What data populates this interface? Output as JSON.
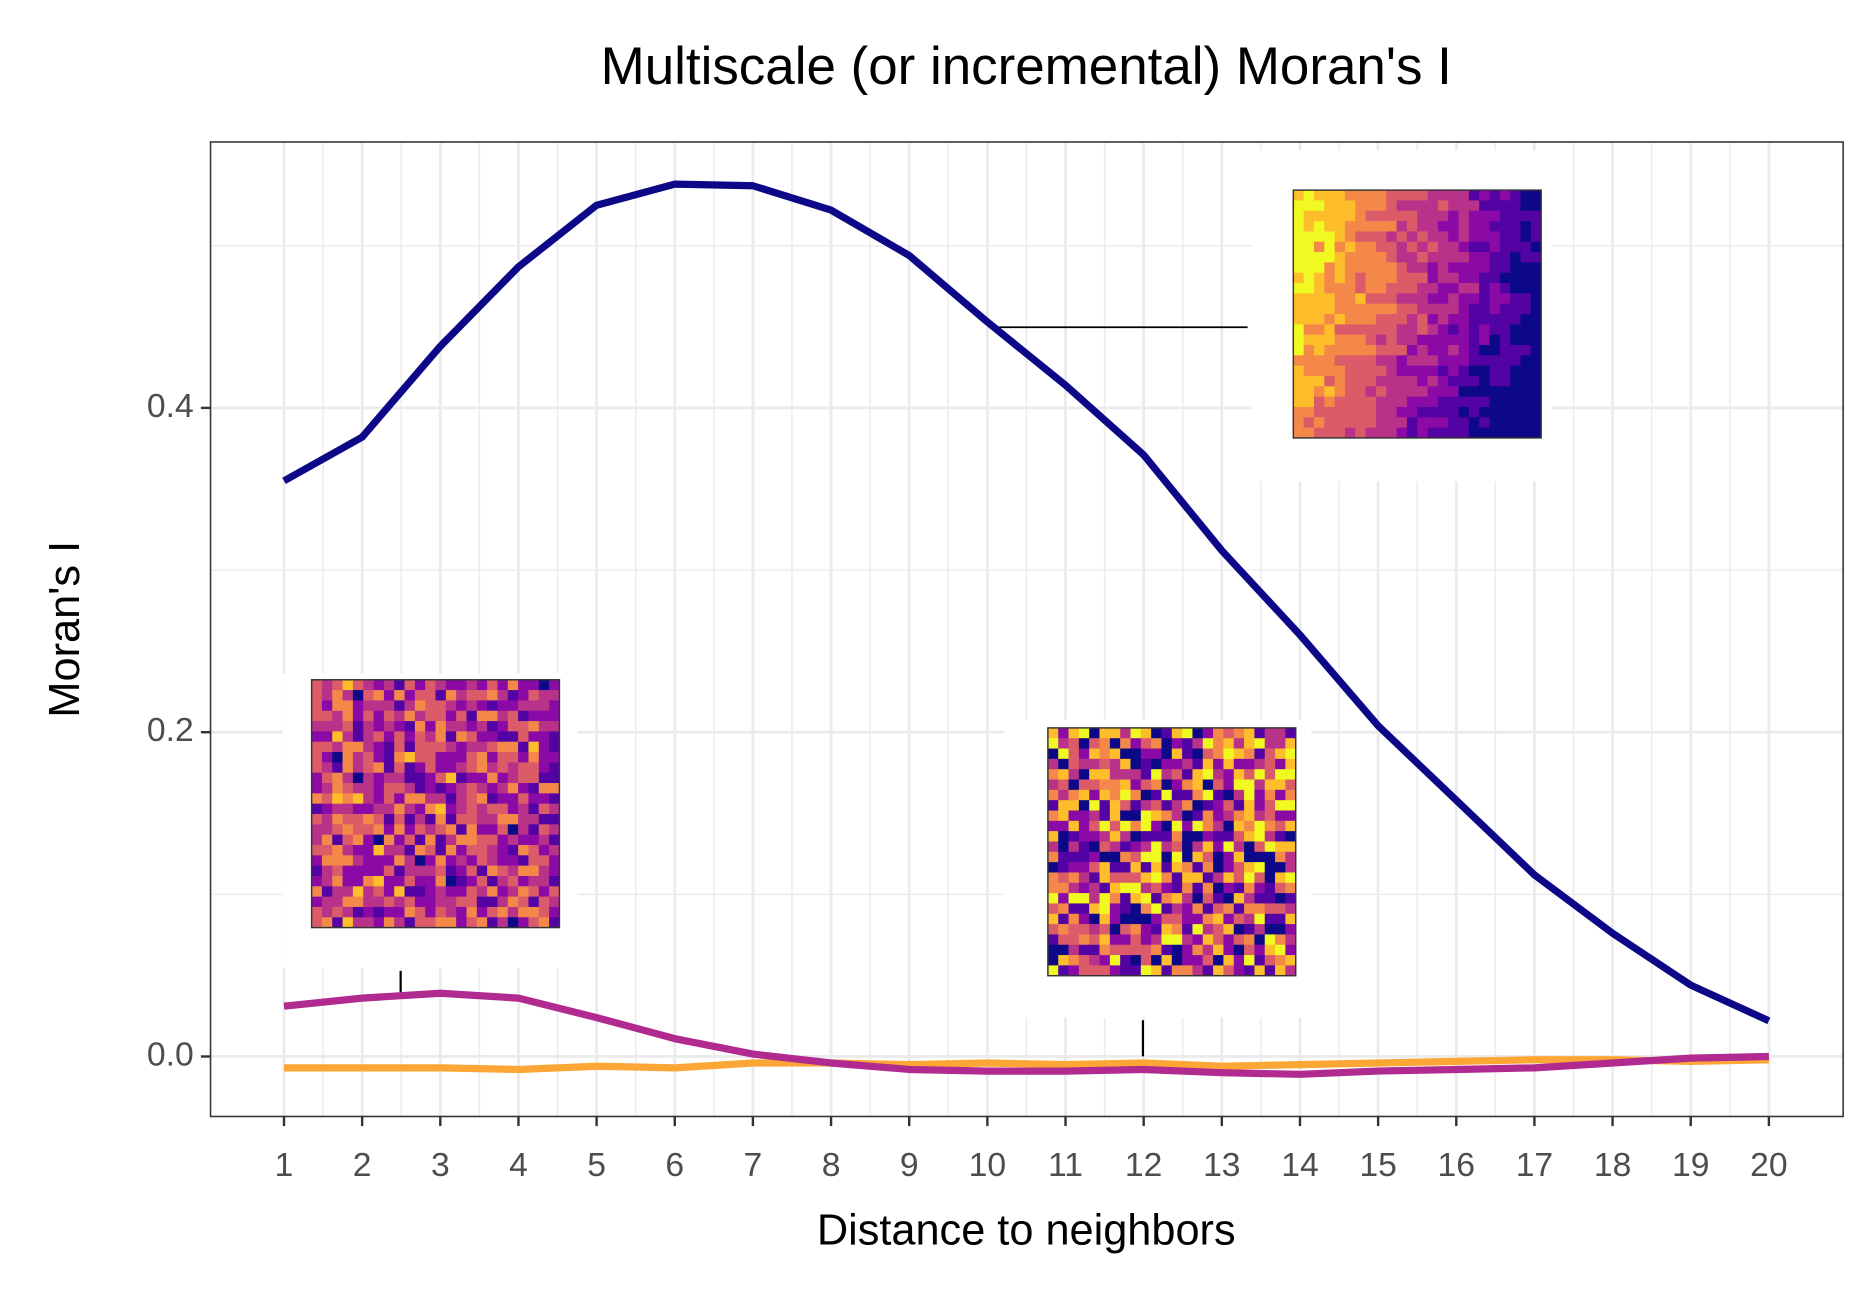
{
  "chart_data": {
    "type": "line",
    "title": "Multiscale (or incremental) Moran's I",
    "x_label": "Distance to neighbors",
    "y_label": "Moran's I",
    "x": [
      1,
      2,
      3,
      4,
      5,
      6,
      7,
      8,
      9,
      10,
      11,
      12,
      13,
      14,
      15,
      16,
      17,
      18,
      19,
      20
    ],
    "series": [
      {
        "color": "#0d0887",
        "values": [
          0.355,
          0.382,
          0.438,
          0.487,
          0.525,
          0.538,
          0.537,
          0.522,
          0.494,
          0.453,
          0.414,
          0.371,
          0.312,
          0.26,
          0.204,
          0.158,
          0.112,
          0.076,
          0.044,
          0.022
        ]
      },
      {
        "color": "#b12a90",
        "values": [
          0.031,
          0.036,
          0.039,
          0.036,
          0.024,
          0.011,
          0.0015,
          -0.004,
          -0.008,
          -0.009,
          -0.009,
          -0.008,
          -0.01,
          -0.011,
          -0.009,
          -0.008,
          -0.007,
          -0.004,
          -0.001,
          0.0
        ]
      },
      {
        "color": "#fca636",
        "values": [
          -0.007,
          -0.007,
          -0.007,
          -0.008,
          -0.006,
          -0.007,
          -0.004,
          -0.004,
          -0.005,
          -0.004,
          -0.005,
          -0.004,
          -0.006,
          -0.005,
          -0.004,
          -0.003,
          -0.002,
          -0.002,
          -0.003,
          -0.002
        ]
      }
    ],
    "xlim": [
      0.06,
      20.95
    ],
    "xticks": [
      1,
      2,
      3,
      4,
      5,
      6,
      7,
      8,
      9,
      10,
      11,
      12,
      13,
      14,
      15,
      16,
      17,
      18,
      19,
      20
    ],
    "ylim": [
      -0.037,
      0.564
    ],
    "yticks": [
      {
        "value": 0,
        "label": "0.0"
      },
      0.2,
      0.4
    ],
    "grid": true
  }
}
